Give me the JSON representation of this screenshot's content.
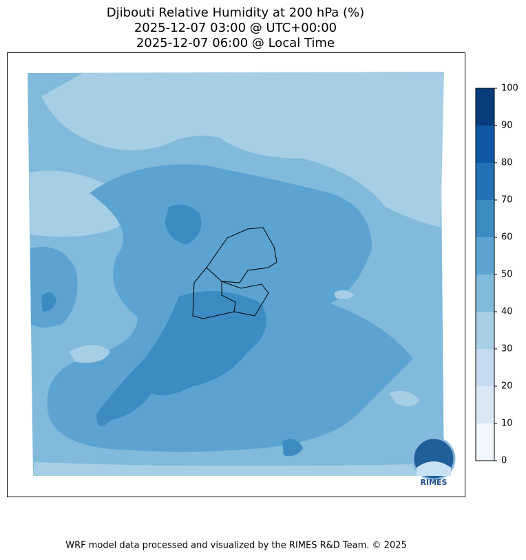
{
  "title": [
    "Djibouti Relative Humidity at 200 hPa (%)",
    "2025-12-07 03:00 @ UTC+00:00",
    "2025-12-07 06:00 @ Local Time"
  ],
  "colorbar": {
    "ticks": [
      0,
      10,
      20,
      30,
      40,
      50,
      60,
      70,
      80,
      90,
      100
    ],
    "colors": [
      "#f0f6fc",
      "#dae8f6",
      "#c6dbef",
      "#a6cee4",
      "#81badb",
      "#5ca3d1",
      "#3c8bc3",
      "#2271b5",
      "#0f58a3",
      "#083c7d"
    ]
  },
  "logo": "RIMES",
  "footer": "WRF model data processed and visualized by the RIMES R&D Team. © 2025"
}
